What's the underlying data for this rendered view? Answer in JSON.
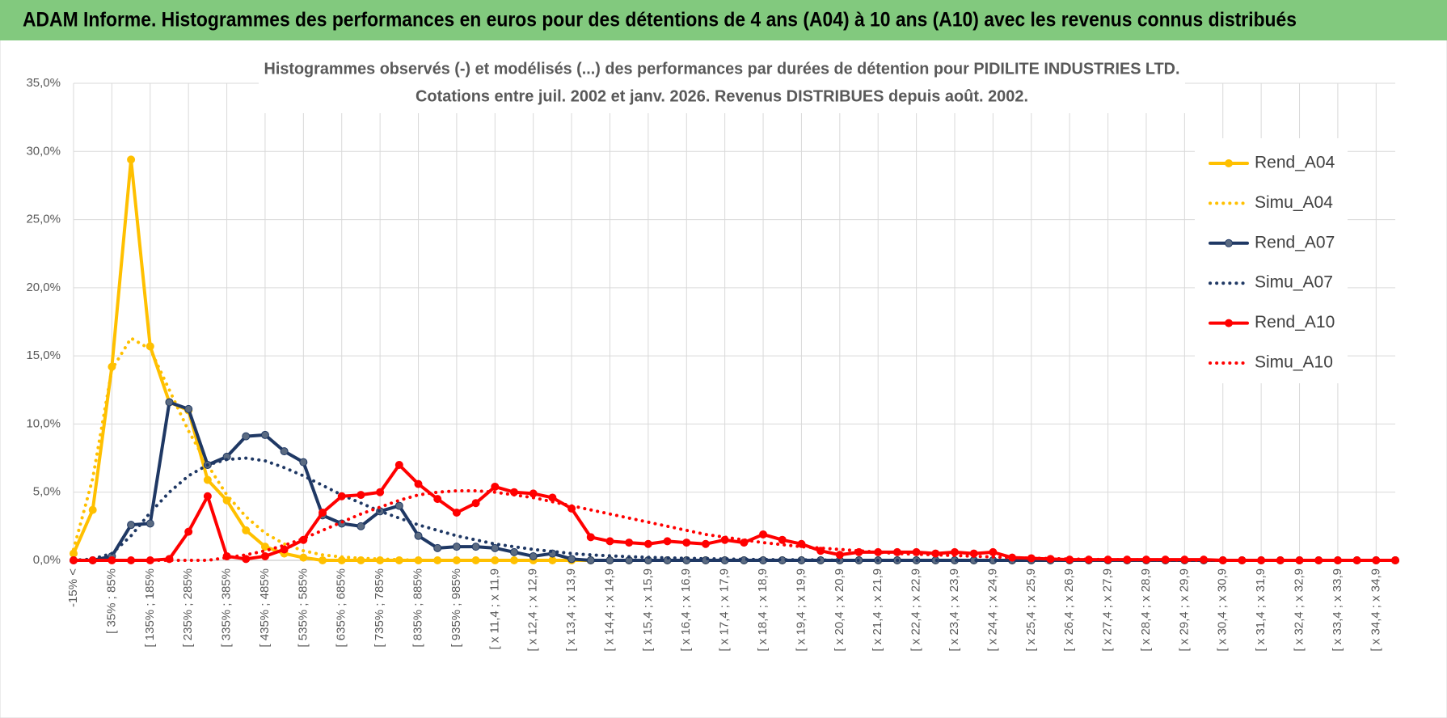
{
  "header": {
    "title": "ADAM Informe. Histogrammes des performances en euros pour des détentions de 4 ans (A04) à 10 ans (A10) avec les revenus connus distribués"
  },
  "chart_data": {
    "type": "line",
    "title": [
      "Histogrammes observés (-) et modélisés (...) des performances par durées de détention pour PIDILITE INDUSTRIES LTD.",
      "Cotations entre juil. 2002 et janv. 2026. Revenus DISTRIBUES depuis août. 2002."
    ],
    "categories": [
      "-15% <",
      null,
      "[ 35% ; 85%",
      null,
      "[ 135% ; 185%",
      null,
      "[ 235% ; 285%",
      null,
      "[ 335% ; 385%",
      null,
      "[ 435% ; 485%",
      null,
      "[ 535% ; 585%",
      null,
      "[ 635% ; 685%",
      null,
      "[ 735% ; 785%",
      null,
      "[ 835% ; 885%",
      null,
      "[ 935% ; 985%",
      null,
      "[ x 11,4 ; x 11,9",
      null,
      "[ x 12,4 ; x 12,9",
      null,
      "[ x 13,4 ; x 13,9",
      null,
      "[ x 14,4 ; x 14,9",
      null,
      "[ x 15,4 ; x 15,9",
      null,
      "[ x 16,4 ; x 16,9",
      null,
      "[ x 17,4 ; x 17,9",
      null,
      "[ x 18,4 ; x 18,9",
      null,
      "[ x 19,4 ; x 19,9",
      null,
      "[ x 20,4 ; x 20,9",
      null,
      "[ x 21,4 ; x 21,9",
      null,
      "[ x 22,4 ; x 22,9",
      null,
      "[ x 23,4 ; x 23,9",
      null,
      "[ x 24,4 ; x 24,9",
      null,
      "[ x 25,4 ; x 25,9",
      null,
      "[ x 26,4 ; x 26,9",
      null,
      "[ x 27,4 ; x 27,9",
      null,
      "[ x 28,4 ; x 28,9",
      null,
      "[ x 29,4 ; x 29,9",
      null,
      "[ x 30,4 ; x 30,9",
      null,
      "[ x 31,4 ; x 31,9",
      null,
      "[ x 32,4 ; x 32,9",
      null,
      "[ x 33,4 ; x 33,9",
      null,
      "[ x 34,4 ; x 34,9",
      null
    ],
    "series": [
      {
        "name": "Rend_A04",
        "color": "#FFC000",
        "line_style": "solid",
        "marker": true,
        "marker_color": "#FFC000",
        "values": [
          0.5,
          3.7,
          14.2,
          29.4,
          15.7,
          11.6,
          11.0,
          5.9,
          4.4,
          2.2,
          1.0,
          0.5,
          0.2,
          0,
          0,
          0,
          0,
          0,
          0,
          0,
          0,
          0,
          0,
          0,
          0,
          0,
          0,
          0,
          0,
          0,
          0,
          0,
          0,
          0,
          0,
          0,
          0,
          0,
          0,
          0,
          0,
          0,
          0,
          0,
          0,
          0,
          0,
          0,
          0,
          0,
          0,
          0,
          0,
          0,
          0,
          0,
          0,
          0,
          0,
          0,
          0,
          0,
          0,
          0,
          0,
          0,
          0,
          0,
          0,
          0
        ]
      },
      {
        "name": "Simu_A04",
        "color": "#FFC000",
        "line_style": "dotted",
        "marker": false,
        "values": [
          0.8,
          6.0,
          14.0,
          16.3,
          15.5,
          12.5,
          9.5,
          7.0,
          4.8,
          3.2,
          2.0,
          1.2,
          0.7,
          0.4,
          0.25,
          0.15,
          0.1,
          0.05,
          0,
          0,
          0,
          0,
          0,
          0,
          0,
          0,
          0,
          0,
          0,
          0,
          0,
          0,
          0,
          0,
          0,
          0,
          0,
          0,
          0,
          0,
          0,
          0,
          0,
          0,
          0,
          0,
          0,
          0,
          0,
          0,
          0,
          0,
          0,
          0,
          0,
          0,
          0,
          0,
          0,
          0,
          0,
          0,
          0,
          0,
          0,
          0,
          0,
          0,
          0,
          0
        ]
      },
      {
        "name": "Rend_A07",
        "color": "#1F3864",
        "line_style": "solid",
        "marker": true,
        "marker_color": "#5B6B82",
        "values": [
          0,
          0,
          0.3,
          2.6,
          2.7,
          11.6,
          11.1,
          7.0,
          7.6,
          9.1,
          9.2,
          8.0,
          7.2,
          3.3,
          2.7,
          2.5,
          3.6,
          4.0,
          1.8,
          0.9,
          1.0,
          1.0,
          0.9,
          0.6,
          0.3,
          0.5,
          0.1,
          0,
          0,
          0,
          0,
          0,
          0,
          0,
          0,
          0,
          0,
          0,
          0,
          0,
          0,
          0,
          0,
          0,
          0,
          0,
          0,
          0,
          0,
          0,
          0,
          0,
          0,
          0,
          0,
          0,
          0,
          0,
          0,
          0,
          0,
          0,
          0,
          0,
          0,
          0,
          0,
          0,
          0,
          0
        ]
      },
      {
        "name": "Simu_A07",
        "color": "#1F3864",
        "line_style": "dotted",
        "marker": false,
        "values": [
          0,
          0.1,
          0.5,
          1.8,
          3.5,
          5.0,
          6.2,
          7.0,
          7.4,
          7.5,
          7.3,
          6.8,
          6.2,
          5.5,
          4.8,
          4.2,
          3.6,
          3.1,
          2.6,
          2.2,
          1.8,
          1.5,
          1.2,
          1.0,
          0.8,
          0.65,
          0.5,
          0.4,
          0.33,
          0.27,
          0.22,
          0.18,
          0.15,
          0.12,
          0.1,
          0.08,
          0.06,
          0.05,
          0.04,
          0.03,
          0,
          0,
          0,
          0,
          0,
          0,
          0,
          0,
          0,
          0,
          0,
          0,
          0,
          0,
          0,
          0,
          0,
          0,
          0,
          0,
          0,
          0,
          0,
          0,
          0,
          0,
          0,
          0,
          0,
          0
        ]
      },
      {
        "name": "Rend_A10",
        "color": "#FF0000",
        "line_style": "solid",
        "marker": true,
        "marker_color": "#FF0000",
        "values": [
          0,
          0,
          0,
          0,
          0,
          0.1,
          2.1,
          4.7,
          0.3,
          0.1,
          0.3,
          0.8,
          1.5,
          3.5,
          4.7,
          4.8,
          5.0,
          7.0,
          5.6,
          4.5,
          3.5,
          4.2,
          5.4,
          5.0,
          4.9,
          4.6,
          3.8,
          1.7,
          1.4,
          1.3,
          1.2,
          1.4,
          1.3,
          1.2,
          1.5,
          1.3,
          1.9,
          1.5,
          1.2,
          0.7,
          0.4,
          0.6,
          0.6,
          0.6,
          0.6,
          0.5,
          0.6,
          0.5,
          0.6,
          0.2,
          0.15,
          0.1,
          0.05,
          0.05,
          0.05,
          0.05,
          0.05,
          0.05,
          0.05,
          0.05,
          0,
          0,
          0,
          0,
          0,
          0,
          0,
          0,
          0,
          0
        ]
      },
      {
        "name": "Simu_A10",
        "color": "#FF0000",
        "line_style": "dotted",
        "marker": false,
        "values": [
          0,
          0,
          0,
          0,
          0,
          0,
          0,
          0,
          0.2,
          0.4,
          0.7,
          1.1,
          1.6,
          2.2,
          2.8,
          3.4,
          3.9,
          4.4,
          4.8,
          5.0,
          5.1,
          5.1,
          5.0,
          4.8,
          4.6,
          4.3,
          4.0,
          3.7,
          3.4,
          3.1,
          2.8,
          2.5,
          2.2,
          1.9,
          1.7,
          1.5,
          1.3,
          1.15,
          1.0,
          0.9,
          0.8,
          0.7,
          0.6,
          0.5,
          0.45,
          0.4,
          0.35,
          0.3,
          0.25,
          0.2,
          0.16,
          0.13,
          0.1,
          0.08,
          0.06,
          0.05,
          0.04,
          0.03,
          0.02,
          0,
          0,
          0,
          0,
          0,
          0,
          0,
          0,
          0,
          0,
          0
        ]
      }
    ],
    "ylim": [
      0,
      35
    ],
    "yticks": [
      {
        "value": 0,
        "label": "0,0%"
      },
      {
        "value": 5,
        "label": "5,0%"
      },
      {
        "value": 10,
        "label": "10,0%"
      },
      {
        "value": 15,
        "label": "15,0%"
      },
      {
        "value": 20,
        "label": "20,0%"
      },
      {
        "value": 25,
        "label": "25,0%"
      },
      {
        "value": 30,
        "label": "30,0%"
      },
      {
        "value": 35,
        "label": "35,0%"
      }
    ],
    "grid": true,
    "legend": "right"
  }
}
